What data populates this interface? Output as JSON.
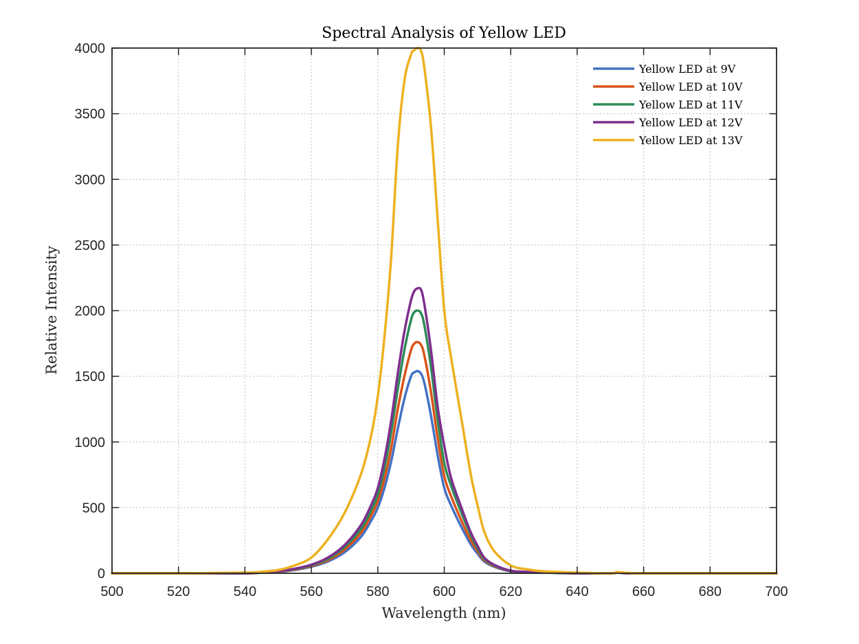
{
  "chart_data": {
    "type": "line",
    "title": "Spectral Analysis of Yellow LED",
    "xlabel": "Wavelength (nm)",
    "ylabel": "Relative Intensity",
    "xlim": [
      500,
      700
    ],
    "ylim": [
      0,
      4000
    ],
    "xticks": [
      500,
      520,
      540,
      560,
      580,
      600,
      620,
      640,
      660,
      680,
      700
    ],
    "yticks": [
      0,
      500,
      1000,
      1500,
      2000,
      2500,
      3000,
      3500,
      4000
    ],
    "grid": true,
    "legend_position": "top-right",
    "x": [
      500,
      520,
      540,
      545,
      550,
      555,
      560,
      565,
      570,
      575,
      578,
      580,
      582,
      584,
      586,
      588,
      590,
      591,
      592,
      593,
      594,
      596,
      598,
      600,
      602,
      605,
      608,
      610,
      612,
      615,
      620,
      625,
      630,
      640,
      650,
      652,
      655,
      660,
      680,
      700
    ],
    "series": [
      {
        "name": "Yellow LED at 9V",
        "color": "#4472c4",
        "values": [
          0,
          0,
          0,
          5,
          10,
          25,
          50,
          90,
          160,
          280,
          400,
          500,
          650,
          850,
          1100,
          1330,
          1500,
          1530,
          1540,
          1520,
          1450,
          1200,
          900,
          650,
          520,
          360,
          220,
          150,
          90,
          50,
          15,
          8,
          5,
          0,
          0,
          5,
          0,
          0,
          0,
          0
        ]
      },
      {
        "name": "Yellow LED at 10V",
        "color": "#d95319",
        "values": [
          0,
          0,
          0,
          5,
          12,
          28,
          55,
          100,
          180,
          310,
          440,
          550,
          720,
          950,
          1250,
          1500,
          1700,
          1750,
          1760,
          1740,
          1660,
          1380,
          1030,
          740,
          590,
          410,
          250,
          170,
          100,
          55,
          17,
          9,
          5,
          0,
          0,
          5,
          0,
          0,
          0,
          0
        ]
      },
      {
        "name": "Yellow LED at 11V",
        "color": "#2e8b57",
        "values": [
          0,
          0,
          0,
          6,
          14,
          32,
          60,
          110,
          200,
          340,
          480,
          600,
          800,
          1070,
          1400,
          1700,
          1930,
          1990,
          2000,
          1980,
          1890,
          1570,
          1170,
          840,
          670,
          470,
          290,
          190,
          110,
          60,
          18,
          10,
          6,
          0,
          0,
          6,
          0,
          0,
          0,
          0
        ]
      },
      {
        "name": "Yellow LED at 12V",
        "color": "#7e2f8e",
        "values": [
          0,
          0,
          0,
          6,
          15,
          35,
          65,
          120,
          215,
          370,
          520,
          650,
          870,
          1160,
          1520,
          1840,
          2080,
          2150,
          2170,
          2160,
          2050,
          1700,
          1270,
          970,
          730,
          510,
          310,
          210,
          120,
          65,
          20,
          11,
          6,
          0,
          0,
          6,
          0,
          0,
          0,
          0
        ]
      },
      {
        "name": "Yellow LED at 13V",
        "color": "#edb120",
        "values": [
          0,
          0,
          5,
          12,
          25,
          60,
          120,
          260,
          460,
          760,
          1050,
          1350,
          1800,
          2400,
          3250,
          3750,
          3950,
          3985,
          4000,
          3980,
          3850,
          3400,
          2700,
          2000,
          1650,
          1200,
          750,
          520,
          320,
          170,
          60,
          30,
          15,
          5,
          0,
          10,
          3,
          0,
          0,
          0
        ]
      }
    ]
  }
}
